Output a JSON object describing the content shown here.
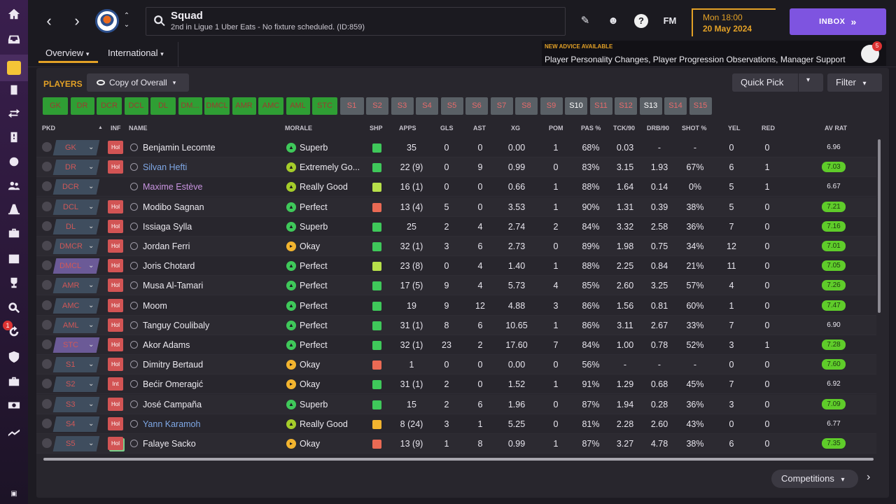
{
  "header": {
    "title": "Squad",
    "subtitle": "2nd in Ligue 1 Uber Eats - No fixture scheduled. (ID:859)",
    "date_line1": "Mon 18:00",
    "date_line2": "20 May 2024",
    "inbox_label": "INBOX",
    "fm_label": "FM",
    "help_label": "?"
  },
  "subnav": {
    "tabs": [
      {
        "label": "Overview"
      },
      {
        "label": "International"
      }
    ]
  },
  "advice": {
    "heading": "NEW ADVICE AVAILABLE",
    "body": "Player Personality Changes, Player Progression Observations, Manager Support",
    "badge": "5"
  },
  "rail": {
    "badge": "1"
  },
  "panel": {
    "players_label": "PLAYERS",
    "view_label": "Copy of Overall",
    "quick_pick_label": "Quick Pick",
    "filter_label": "Filter",
    "competitions_label": "Competitions"
  },
  "positions": [
    {
      "label": "GK",
      "tone": "green"
    },
    {
      "label": "DR",
      "tone": "green"
    },
    {
      "label": "DCR",
      "tone": "green"
    },
    {
      "label": "DCL",
      "tone": "green"
    },
    {
      "label": "DL",
      "tone": "green"
    },
    {
      "label": "DM...",
      "tone": "green"
    },
    {
      "label": "DMCL",
      "tone": "green"
    },
    {
      "label": "AMR",
      "tone": "green"
    },
    {
      "label": "AMC",
      "tone": "green"
    },
    {
      "label": "AML",
      "tone": "green"
    },
    {
      "label": "STC",
      "tone": "green"
    },
    {
      "label": "S1",
      "tone": "grey"
    },
    {
      "label": "S2",
      "tone": "grey"
    },
    {
      "label": "S3",
      "tone": "grey"
    },
    {
      "label": "S4",
      "tone": "grey"
    },
    {
      "label": "S5",
      "tone": "grey"
    },
    {
      "label": "S6",
      "tone": "grey"
    },
    {
      "label": "S7",
      "tone": "grey"
    },
    {
      "label": "S8",
      "tone": "grey"
    },
    {
      "label": "S9",
      "tone": "grey"
    },
    {
      "label": "S10",
      "tone": "white"
    },
    {
      "label": "S11",
      "tone": "grey"
    },
    {
      "label": "S12",
      "tone": "grey"
    },
    {
      "label": "S13",
      "tone": "white"
    },
    {
      "label": "S14",
      "tone": "grey"
    },
    {
      "label": "S15",
      "tone": "grey"
    }
  ],
  "columns": [
    "PKD",
    "INF",
    "NAME",
    "MORALE",
    "SHP",
    "APPS",
    "GLS",
    "AST",
    "XG",
    "POM",
    "PAS %",
    "TCK/90",
    "DRB/90",
    "SHOT %",
    "YEL",
    "RED",
    "AV RAT"
  ],
  "players": [
    {
      "pos": "GK",
      "inf": "Hol",
      "name": "Benjamin Lecomte",
      "name_style": "normal",
      "morale": "Superb",
      "mood": "green",
      "shp": "green",
      "apps": "35",
      "gls": "0",
      "ast": "0",
      "xg": "0.00",
      "pom": "1",
      "pas": "68%",
      "tck": "0.03",
      "drb": "-",
      "shot": "-",
      "yel": "0",
      "red": "0",
      "avr": "6.96",
      "avr_hi": false
    },
    {
      "pos": "DR",
      "inf": "Hol",
      "name": "Silvan Hefti",
      "name_style": "blue",
      "morale": "Extremely Go...",
      "mood": "yellowgreen",
      "shp": "green",
      "apps": "22 (9)",
      "gls": "0",
      "ast": "9",
      "xg": "0.99",
      "pom": "0",
      "pas": "83%",
      "tck": "3.15",
      "drb": "1.93",
      "shot": "67%",
      "yel": "6",
      "red": "1",
      "avr": "7.03",
      "avr_hi": true
    },
    {
      "pos": "DCR",
      "inf": "",
      "name": "Maxime Estève",
      "name_style": "purple",
      "morale": "Really Good",
      "mood": "yellowgreen",
      "shp": "lime",
      "apps": "16 (1)",
      "gls": "0",
      "ast": "0",
      "xg": "0.66",
      "pom": "1",
      "pas": "88%",
      "tck": "1.64",
      "drb": "0.14",
      "shot": "0%",
      "yel": "5",
      "red": "1",
      "avr": "6.67",
      "avr_hi": false
    },
    {
      "pos": "DCL",
      "inf": "Hol",
      "name": "Modibo Sagnan",
      "name_style": "normal",
      "morale": "Perfect",
      "mood": "green",
      "shp": "red",
      "apps": "13 (4)",
      "gls": "5",
      "ast": "0",
      "xg": "3.53",
      "pom": "1",
      "pas": "90%",
      "tck": "1.31",
      "drb": "0.39",
      "shot": "38%",
      "yel": "5",
      "red": "0",
      "avr": "7.21",
      "avr_hi": true
    },
    {
      "pos": "DL",
      "inf": "Hol",
      "name": "Issiaga Sylla",
      "name_style": "normal",
      "morale": "Superb",
      "mood": "green",
      "shp": "green",
      "apps": "25",
      "gls": "2",
      "ast": "4",
      "xg": "2.74",
      "pom": "2",
      "pas": "84%",
      "tck": "3.32",
      "drb": "2.58",
      "shot": "36%",
      "yel": "7",
      "red": "0",
      "avr": "7.16",
      "avr_hi": true
    },
    {
      "pos": "DMCR",
      "inf": "Hol",
      "name": "Jordan Ferri",
      "name_style": "normal",
      "morale": "Okay",
      "mood": "amber",
      "shp": "green",
      "apps": "32 (1)",
      "gls": "3",
      "ast": "6",
      "xg": "2.73",
      "pom": "0",
      "pas": "89%",
      "tck": "1.98",
      "drb": "0.75",
      "shot": "34%",
      "yel": "12",
      "red": "0",
      "avr": "7.01",
      "avr_hi": true
    },
    {
      "pos": "DMCL",
      "inf": "Hol",
      "name": "Joris Chotard",
      "name_style": "normal",
      "morale": "Perfect",
      "mood": "green",
      "shp": "lime",
      "apps": "23 (8)",
      "gls": "0",
      "ast": "4",
      "xg": "1.40",
      "pom": "1",
      "pas": "88%",
      "tck": "2.25",
      "drb": "0.84",
      "shot": "21%",
      "yel": "11",
      "red": "0",
      "avr": "7.05",
      "avr_hi": true
    },
    {
      "pos": "AMR",
      "inf": "Hol",
      "name": "Musa Al-Tamari",
      "name_style": "normal",
      "morale": "Perfect",
      "mood": "green",
      "shp": "green",
      "apps": "17 (5)",
      "gls": "9",
      "ast": "4",
      "xg": "5.73",
      "pom": "4",
      "pas": "85%",
      "tck": "2.60",
      "drb": "3.25",
      "shot": "57%",
      "yel": "4",
      "red": "0",
      "avr": "7.26",
      "avr_hi": true
    },
    {
      "pos": "AMC",
      "inf": "Hol",
      "name": "Moom",
      "name_style": "normal",
      "morale": "Perfect",
      "mood": "green",
      "shp": "green",
      "apps": "19",
      "gls": "9",
      "ast": "12",
      "xg": "4.88",
      "pom": "3",
      "pas": "86%",
      "tck": "1.56",
      "drb": "0.81",
      "shot": "60%",
      "yel": "1",
      "red": "0",
      "avr": "7.47",
      "avr_hi": true
    },
    {
      "pos": "AML",
      "inf": "Hol",
      "name": "Tanguy Coulibaly",
      "name_style": "normal",
      "morale": "Perfect",
      "mood": "green",
      "shp": "green",
      "apps": "31 (1)",
      "gls": "8",
      "ast": "6",
      "xg": "10.65",
      "pom": "1",
      "pas": "86%",
      "tck": "3.11",
      "drb": "2.67",
      "shot": "33%",
      "yel": "7",
      "red": "0",
      "avr": "6.90",
      "avr_hi": false
    },
    {
      "pos": "STC",
      "inf": "Hol",
      "name": "Akor Adams",
      "name_style": "normal",
      "morale": "Perfect",
      "mood": "green",
      "shp": "green",
      "apps": "32 (1)",
      "gls": "23",
      "ast": "2",
      "xg": "17.60",
      "pom": "7",
      "pas": "84%",
      "tck": "1.00",
      "drb": "0.78",
      "shot": "52%",
      "yel": "3",
      "red": "1",
      "avr": "7.28",
      "avr_hi": true
    },
    {
      "pos": "S1",
      "inf": "Hol",
      "name": "Dimitry Bertaud",
      "name_style": "normal",
      "morale": "Okay",
      "mood": "amber",
      "shp": "red",
      "apps": "1",
      "gls": "0",
      "ast": "0",
      "xg": "0.00",
      "pom": "0",
      "pas": "56%",
      "tck": "-",
      "drb": "-",
      "shot": "-",
      "yel": "0",
      "red": "0",
      "avr": "7.60",
      "avr_hi": true
    },
    {
      "pos": "S2",
      "inf": "Int",
      "name": "Bećir Omeragić",
      "name_style": "normal",
      "morale": "Okay",
      "mood": "amber",
      "shp": "green",
      "apps": "31 (1)",
      "gls": "2",
      "ast": "0",
      "xg": "1.52",
      "pom": "1",
      "pas": "91%",
      "tck": "1.29",
      "drb": "0.68",
      "shot": "45%",
      "yel": "7",
      "red": "0",
      "avr": "6.92",
      "avr_hi": false
    },
    {
      "pos": "S3",
      "inf": "Hol",
      "name": "José Campaña",
      "name_style": "normal",
      "morale": "Superb",
      "mood": "green",
      "shp": "green",
      "apps": "15",
      "gls": "2",
      "ast": "6",
      "xg": "1.96",
      "pom": "0",
      "pas": "87%",
      "tck": "1.94",
      "drb": "0.28",
      "shot": "36%",
      "yel": "3",
      "red": "0",
      "avr": "7.09",
      "avr_hi": true
    },
    {
      "pos": "S4",
      "inf": "Hol",
      "name": "Yann Karamoh",
      "name_style": "blue",
      "morale": "Really Good",
      "mood": "yellowgreen",
      "shp": "yellow",
      "apps": "8 (24)",
      "gls": "3",
      "ast": "1",
      "xg": "5.25",
      "pom": "0",
      "pas": "81%",
      "tck": "2.28",
      "drb": "2.60",
      "shot": "43%",
      "yel": "0",
      "red": "0",
      "avr": "6.77",
      "avr_hi": false
    },
    {
      "pos": "S5",
      "inf": "Hol",
      "name": "Falaye Sacko",
      "name_style": "normal",
      "morale": "Okay",
      "mood": "amber",
      "shp": "red",
      "apps": "13 (9)",
      "gls": "1",
      "ast": "8",
      "xg": "0.99",
      "pom": "1",
      "pas": "87%",
      "tck": "3.27",
      "drb": "4.78",
      "shot": "38%",
      "yel": "6",
      "red": "0",
      "avr": "7.35",
      "avr_hi": true
    }
  ]
}
